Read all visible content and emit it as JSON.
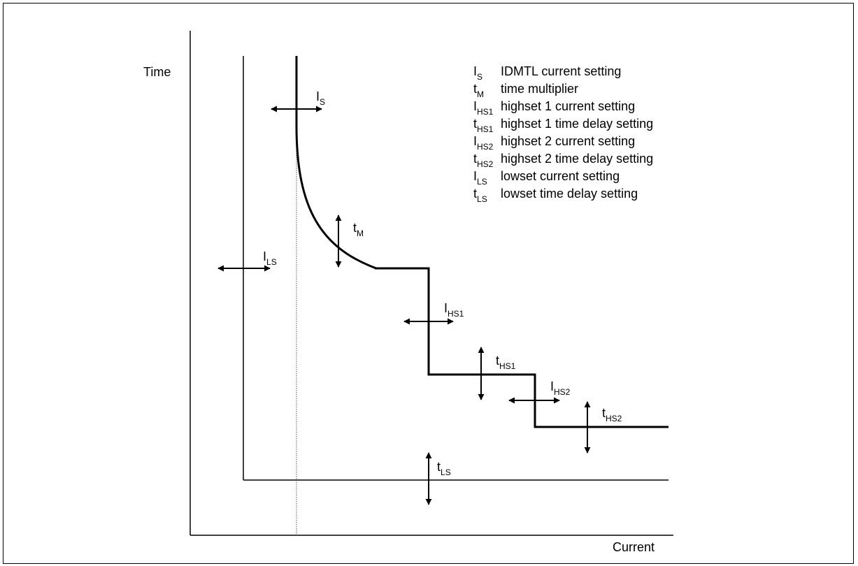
{
  "axes": {
    "y_label": "Time",
    "x_label": "Current"
  },
  "legend": [
    {
      "symbol": "I",
      "sub": "S",
      "text": "IDMTL current setting"
    },
    {
      "symbol": "t",
      "sub": "M",
      "text": "time multiplier"
    },
    {
      "symbol": "I",
      "sub": "HS1",
      "text": "highset 1 current setting"
    },
    {
      "symbol": "t",
      "sub": "HS1",
      "text": "highset 1 time delay setting"
    },
    {
      "symbol": "I",
      "sub": "HS2",
      "text": "highset 2 current setting"
    },
    {
      "symbol": "t",
      "sub": "HS2",
      "text": "highset 2 time delay setting"
    },
    {
      "symbol": "I",
      "sub": "LS",
      "text": "lowset current setting"
    },
    {
      "symbol": "t",
      "sub": "LS",
      "text": "lowset time delay setting"
    }
  ],
  "annotations": {
    "is": {
      "symbol": "I",
      "sub": "S"
    },
    "tm": {
      "symbol": "t",
      "sub": "M"
    },
    "ils": {
      "symbol": "I",
      "sub": "LS"
    },
    "ihs1": {
      "symbol": "I",
      "sub": "HS1"
    },
    "ths1": {
      "symbol": "t",
      "sub": "HS1"
    },
    "ihs2": {
      "symbol": "I",
      "sub": "HS2"
    },
    "ths2": {
      "symbol": "t",
      "sub": "HS2"
    },
    "tls": {
      "symbol": "t",
      "sub": "LS"
    }
  }
}
